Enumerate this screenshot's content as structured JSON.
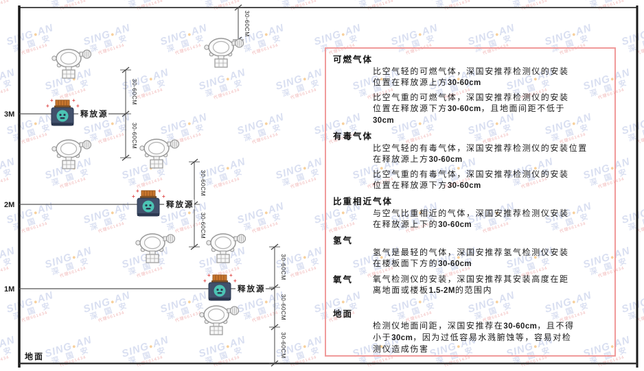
{
  "page": {
    "background": "#ffffff"
  },
  "watermark": {
    "brand_left": "SING",
    "brand_right": "AN",
    "dot": "●",
    "cn": "深 国 安",
    "red_text": "代理661434",
    "blue_color": "#b5c0e4",
    "dot_color": "#f0a23c",
    "red_color": "#e26a6a"
  },
  "diagram": {
    "axis_labels": [
      "3M",
      "2M",
      "1M"
    ],
    "ground_label": "地面",
    "source_label": "释放源",
    "dimension_label": "30-60CM",
    "colors": {
      "frame": "#2a2a2a",
      "line": "#555555",
      "detector_stroke": "#979797",
      "source_cap": "#c9772e",
      "source_cap_dark": "#9c5a20",
      "source_body": "#41506b",
      "source_body_dark": "#2c3850",
      "source_glow": "#4cc4b4",
      "spark_red": "#e14b4b"
    }
  },
  "panel": {
    "border_color": "#f09a9a",
    "sections": [
      {
        "heading": "可燃气体",
        "inline": false,
        "paragraphs": [
          [
            "比空气轻的可燃气体，深国安推荐检测仪的安装",
            "位置在释放源上方30-60cm"
          ],
          [
            "比空气重的可燃气体，深国安推荐检测仪的安装",
            "位置在释放源下方30-60cm，且地面间距不低于",
            "30cm"
          ]
        ]
      },
      {
        "heading": "有毒气体",
        "inline": false,
        "paragraphs": [
          [
            "比空气轻的有毒气体，深国安推荐检测仪的安装位置",
            "在释放源上方30-60cm"
          ],
          [
            "比空气重的有毒气体，深国安推荐检测仪的安装",
            "位置在释放源下方30-60cm"
          ]
        ]
      },
      {
        "heading": "比重相近气体",
        "inline": false,
        "paragraphs": [
          [
            "与空气比重相近的气体，深国安推荐检测仪安装",
            "在释放源上下的30-60cm"
          ]
        ]
      },
      {
        "heading": "氢气",
        "inline": false,
        "paragraphs": [
          [
            "氢气是最轻的气体，深国安推荐氢气检测仪安装",
            "在楼板面下方的30-60cm"
          ]
        ]
      },
      {
        "heading": "氧气",
        "inline": true,
        "paragraphs": [
          [
            "氧气检测仪的安装，深国安推荐其安装高度在距",
            "离地面或楼板1.5-2M的范围内"
          ]
        ]
      },
      {
        "heading": "地面",
        "inline": false,
        "gap_top": true,
        "paragraphs": [
          [
            "检测仪地面间距，深国安推荐在30-60cm，且不得",
            "小于30cm，因为过低容易水溅腑蚀等，容易对检",
            "测仪造成伤害"
          ]
        ]
      }
    ]
  }
}
